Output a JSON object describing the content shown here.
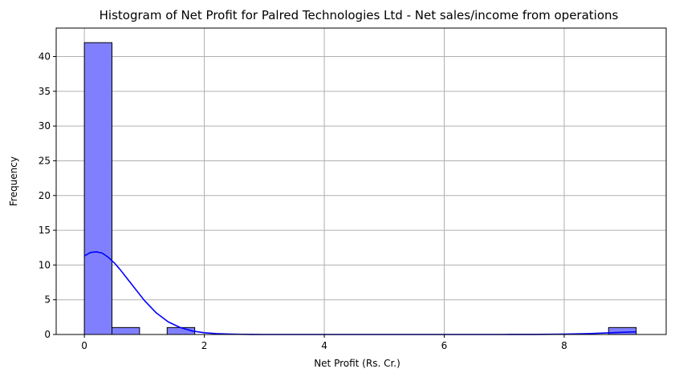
{
  "chart_data": {
    "type": "histogram",
    "title": "Histogram of Net Profit for Palred Technologies Ltd - Net sales/income from operations",
    "xlabel": "Net Profit (Rs. Cr.)",
    "ylabel": "Frequency",
    "xlim": [
      -0.47,
      9.7
    ],
    "ylim": [
      0,
      44.1
    ],
    "xticks": [
      0,
      2,
      4,
      6,
      8
    ],
    "yticks": [
      0,
      5,
      10,
      15,
      20,
      25,
      30,
      35,
      40
    ],
    "grid": true,
    "bin_width": 0.46,
    "bins": [
      {
        "x0": 0.0,
        "x1": 0.46,
        "count": 42
      },
      {
        "x0": 0.46,
        "x1": 0.92,
        "count": 1
      },
      {
        "x0": 0.92,
        "x1": 1.38,
        "count": 0
      },
      {
        "x0": 1.38,
        "x1": 1.84,
        "count": 1
      },
      {
        "x0": 1.84,
        "x1": 2.3,
        "count": 0
      },
      {
        "x0": 2.3,
        "x1": 2.76,
        "count": 0
      },
      {
        "x0": 2.76,
        "x1": 3.22,
        "count": 0
      },
      {
        "x0": 3.22,
        "x1": 3.68,
        "count": 0
      },
      {
        "x0": 3.68,
        "x1": 4.14,
        "count": 0
      },
      {
        "x0": 4.14,
        "x1": 4.6,
        "count": 0
      },
      {
        "x0": 4.6,
        "x1": 5.06,
        "count": 0
      },
      {
        "x0": 5.06,
        "x1": 5.52,
        "count": 0
      },
      {
        "x0": 5.52,
        "x1": 5.98,
        "count": 0
      },
      {
        "x0": 5.98,
        "x1": 6.44,
        "count": 0
      },
      {
        "x0": 6.44,
        "x1": 6.9,
        "count": 0
      },
      {
        "x0": 6.9,
        "x1": 7.36,
        "count": 0
      },
      {
        "x0": 7.36,
        "x1": 7.82,
        "count": 0
      },
      {
        "x0": 7.82,
        "x1": 8.28,
        "count": 0
      },
      {
        "x0": 8.28,
        "x1": 8.74,
        "count": 0
      },
      {
        "x0": 8.74,
        "x1": 9.2,
        "count": 1
      }
    ],
    "kde": {
      "x": [
        0.0,
        0.1,
        0.2,
        0.3,
        0.4,
        0.5,
        0.6,
        0.7,
        0.8,
        1.0,
        1.2,
        1.4,
        1.6,
        1.8,
        2.0,
        2.2,
        2.4,
        2.6,
        2.8,
        3.0,
        3.5,
        4.0,
        5.0,
        6.0,
        7.0,
        7.5,
        8.0,
        8.4,
        8.7,
        9.0,
        9.2
      ],
      "y": [
        11.3,
        11.8,
        11.9,
        11.7,
        11.1,
        10.3,
        9.3,
        8.2,
        7.1,
        4.9,
        3.1,
        1.8,
        1.0,
        0.5,
        0.25,
        0.12,
        0.06,
        0.03,
        0.01,
        0.0,
        0.0,
        0.0,
        0.0,
        0.0,
        0.0,
        0.01,
        0.05,
        0.12,
        0.22,
        0.32,
        0.38
      ]
    },
    "colors": {
      "bar_fill": "#8080ff",
      "bar_edge": "#000000",
      "kde_line": "#0000ff",
      "grid": "#b0b0b0",
      "axis": "#000000"
    }
  }
}
